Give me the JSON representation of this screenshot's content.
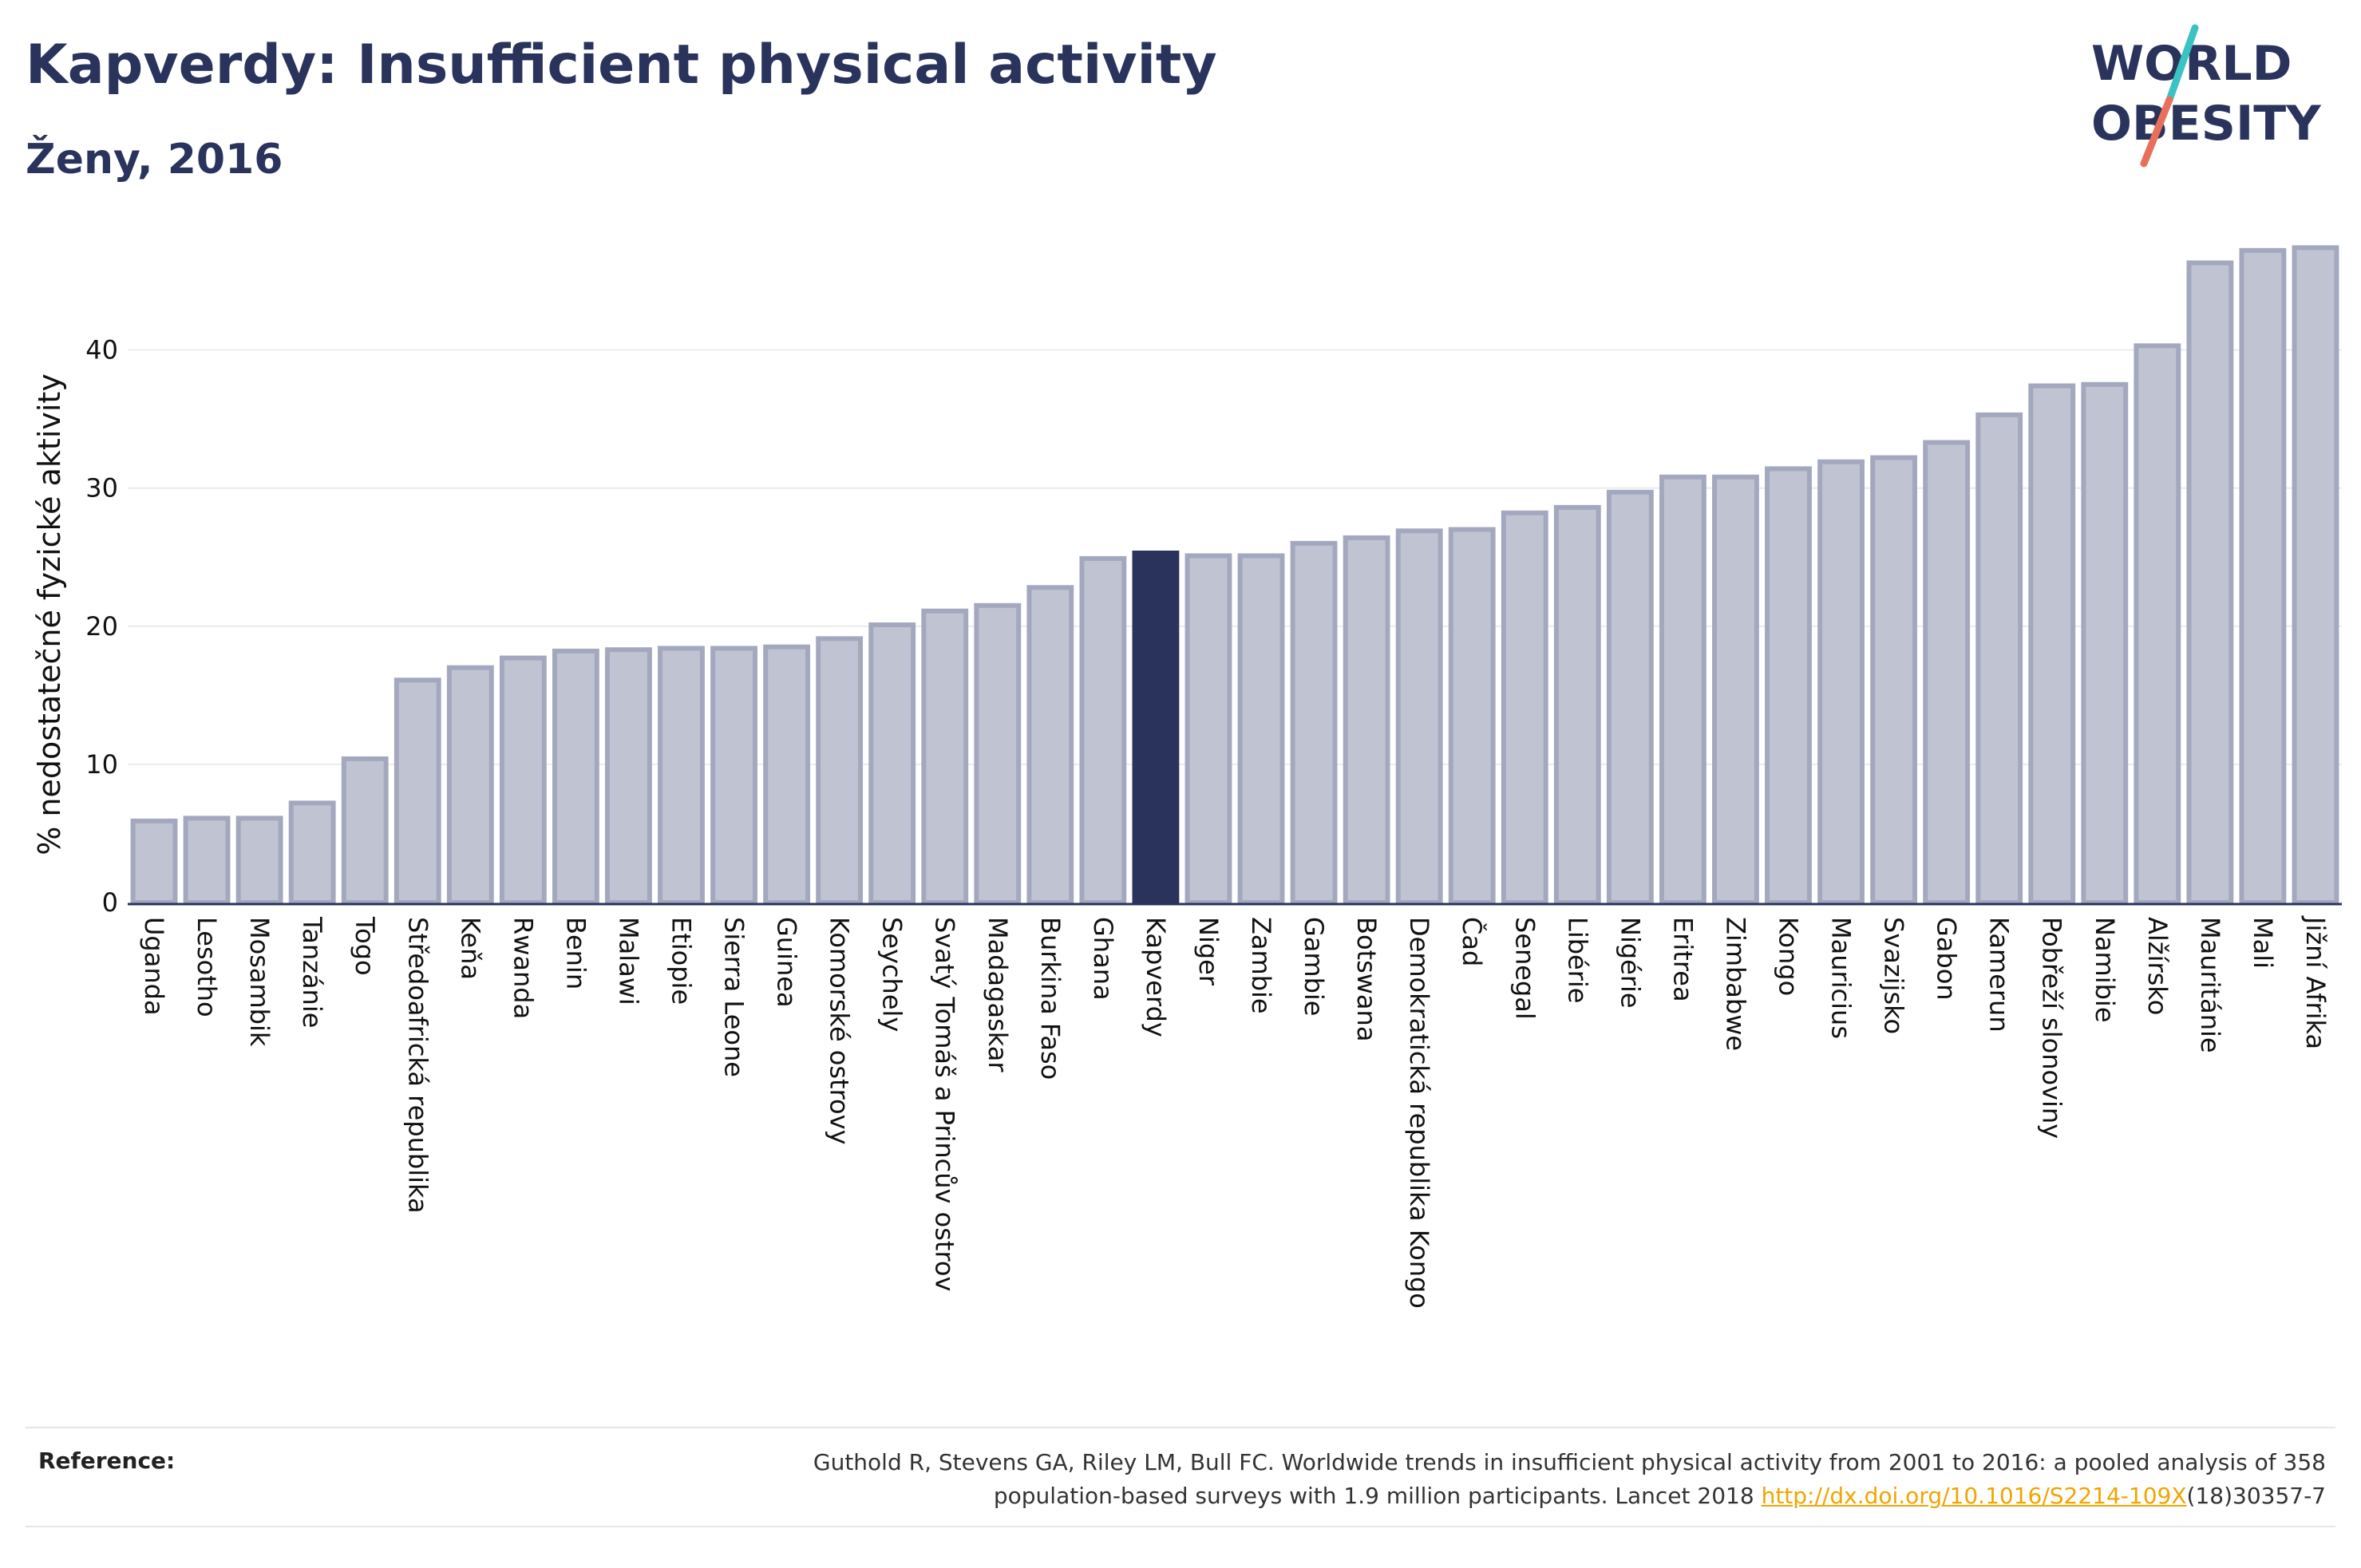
{
  "header": {
    "title": "Kapverdy: Insufficient physical activity",
    "subtitle": "Ženy, 2016"
  },
  "logo": {
    "line1": "WORLD",
    "line2": "OBESITY",
    "colors": {
      "text": "#2a335c",
      "slash_top": "#3cc2c2",
      "slash_bottom": "#e8705a"
    }
  },
  "chart_data": {
    "type": "bar",
    "title": "",
    "xlabel": "",
    "ylabel": "% nedostatečné fyzické aktivity",
    "ylim": [
      0,
      48
    ],
    "yticks": [
      0,
      10,
      20,
      30,
      40
    ],
    "grid": true,
    "categories": [
      "Uganda",
      "Lesotho",
      "Mosambik",
      "Tanzánie",
      "Togo",
      "Středoafrická republika",
      "Keňa",
      "Rwanda",
      "Benin",
      "Malawi",
      "Etiopie",
      "Sierra Leone",
      "Guinea",
      "Komorské ostrovy",
      "Seychely",
      "Svatý Tomáš a Princův ostrov",
      "Madagaskar",
      "Burkina Faso",
      "Ghana",
      "Kapverdy",
      "Niger",
      "Zambie",
      "Gambie",
      "Botswana",
      "Demokratická republika Kongo",
      "Čad",
      "Senegal",
      "Libérie",
      "Nigérie",
      "Eritrea",
      "Zimbabwe",
      "Kongo",
      "Mauricius",
      "Svazijsko",
      "Gabon",
      "Kamerun",
      "Pobřeží slonoviny",
      "Namibie",
      "Alžírsko",
      "Mauritánie",
      "Mali",
      "Jižní Afrika"
    ],
    "values": [
      5.9,
      6.1,
      6.1,
      7.2,
      10.4,
      16.1,
      17.0,
      17.7,
      18.2,
      18.3,
      18.4,
      18.4,
      18.5,
      19.1,
      20.1,
      21.1,
      21.5,
      22.8,
      24.9,
      25.3,
      25.1,
      25.1,
      26.0,
      26.4,
      26.9,
      27.0,
      28.2,
      28.6,
      29.7,
      30.8,
      30.8,
      31.4,
      31.9,
      32.2,
      33.3,
      35.3,
      37.4,
      37.5,
      40.3,
      46.3,
      47.2,
      47.4
    ],
    "highlight": "Kapverdy",
    "colors": {
      "bar": "#c0c4d2",
      "bar_edge": "#a3a8bf",
      "highlight": "#2a335c",
      "grid": "#ebebeb",
      "axis": "#2a335c"
    }
  },
  "reference": {
    "label": "Reference:",
    "line1": "Guthold R, Stevens GA, Riley LM, Bull FC. Worldwide trends in insufficient physical activity from 2001 to 2016: a pooled analysis of 358",
    "line2_before": "population-based surveys with 1.9 million participants. Lancet 2018 ",
    "link": "http://dx.doi.org/10.1016/S2214-109X",
    "line2_after": "(18)30357-7",
    "link_color": "#f0a500"
  }
}
